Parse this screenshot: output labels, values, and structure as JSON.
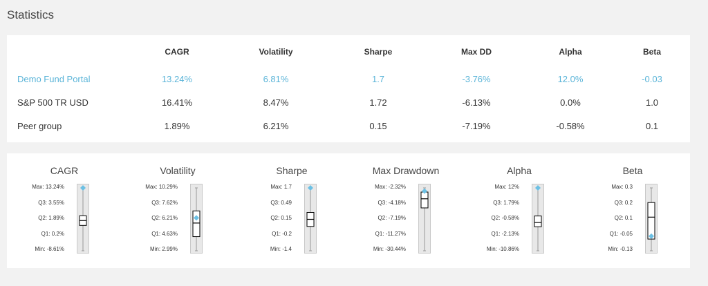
{
  "title": "Statistics",
  "table": {
    "headers": [
      "CAGR",
      "Volatility",
      "Sharpe",
      "Max DD",
      "Alpha",
      "Beta"
    ],
    "rows": [
      {
        "name": "Demo Fund Portal",
        "values": [
          "13.24%",
          "6.81%",
          "1.7",
          "-3.76%",
          "12.0%",
          "-0.03"
        ]
      },
      {
        "name": "S&P 500 TR USD",
        "values": [
          "16.41%",
          "8.47%",
          "1.72",
          "-6.13%",
          "0.0%",
          "1.0"
        ]
      },
      {
        "name": "Peer group",
        "values": [
          "1.89%",
          "6.21%",
          "0.15",
          "-7.19%",
          "-0.58%",
          "0.1"
        ]
      }
    ]
  },
  "boxplots": [
    {
      "title": "CAGR",
      "labels": [
        "Max: 13.24%",
        "Q3: 3.55%",
        "Q2: 1.89%",
        "Q1: 0.2%",
        "Min: -8.61%"
      ],
      "stats": {
        "min": -8.61,
        "q1": 0.2,
        "q2": 1.89,
        "q3": 3.55,
        "max": 13.24,
        "marker": 13.24
      }
    },
    {
      "title": "Volatility",
      "labels": [
        "Max: 10.29%",
        "Q3: 7.62%",
        "Q2: 6.21%",
        "Q1: 4.63%",
        "Min: 2.99%"
      ],
      "stats": {
        "min": 2.99,
        "q1": 4.63,
        "q2": 6.21,
        "q3": 7.62,
        "max": 10.29,
        "marker": 6.81
      }
    },
    {
      "title": "Sharpe",
      "labels": [
        "Max: 1.7",
        "Q3: 0.49",
        "Q2: 0.15",
        "Q1: -0.2",
        "Min: -1.4"
      ],
      "stats": {
        "min": -1.4,
        "q1": -0.2,
        "q2": 0.15,
        "q3": 0.49,
        "max": 1.7,
        "marker": 1.7
      }
    },
    {
      "title": "Max Drawdown",
      "labels": [
        "Max: -2.32%",
        "Q3: -4.18%",
        "Q2: -7.19%",
        "Q1: -11.27%",
        "Min: -30.44%"
      ],
      "stats": {
        "min": -30.44,
        "q1": -11.27,
        "q2": -7.19,
        "q3": -4.18,
        "max": -2.32,
        "marker": -3.76
      }
    },
    {
      "title": "Alpha",
      "labels": [
        "Max: 12%",
        "Q3: 1.79%",
        "Q2: -0.58%",
        "Q1: -2.13%",
        "Min: -10.86%"
      ],
      "stats": {
        "min": -10.86,
        "q1": -2.13,
        "q2": -0.58,
        "q3": 1.79,
        "max": 12,
        "marker": 12
      }
    },
    {
      "title": "Beta",
      "labels": [
        "Max: 0.3",
        "Q3: 0.2",
        "Q2: 0.1",
        "Q1: -0.05",
        "Min: -0.13"
      ],
      "stats": {
        "min": -0.13,
        "q1": -0.05,
        "q2": 0.1,
        "q3": 0.2,
        "max": 0.3,
        "marker": -0.03
      }
    }
  ],
  "colors": {
    "accent": "#5ab4d8",
    "marker": "#6cc0e4",
    "box": "#000000",
    "whisker": "#999999",
    "track": "#e8e8e8"
  }
}
